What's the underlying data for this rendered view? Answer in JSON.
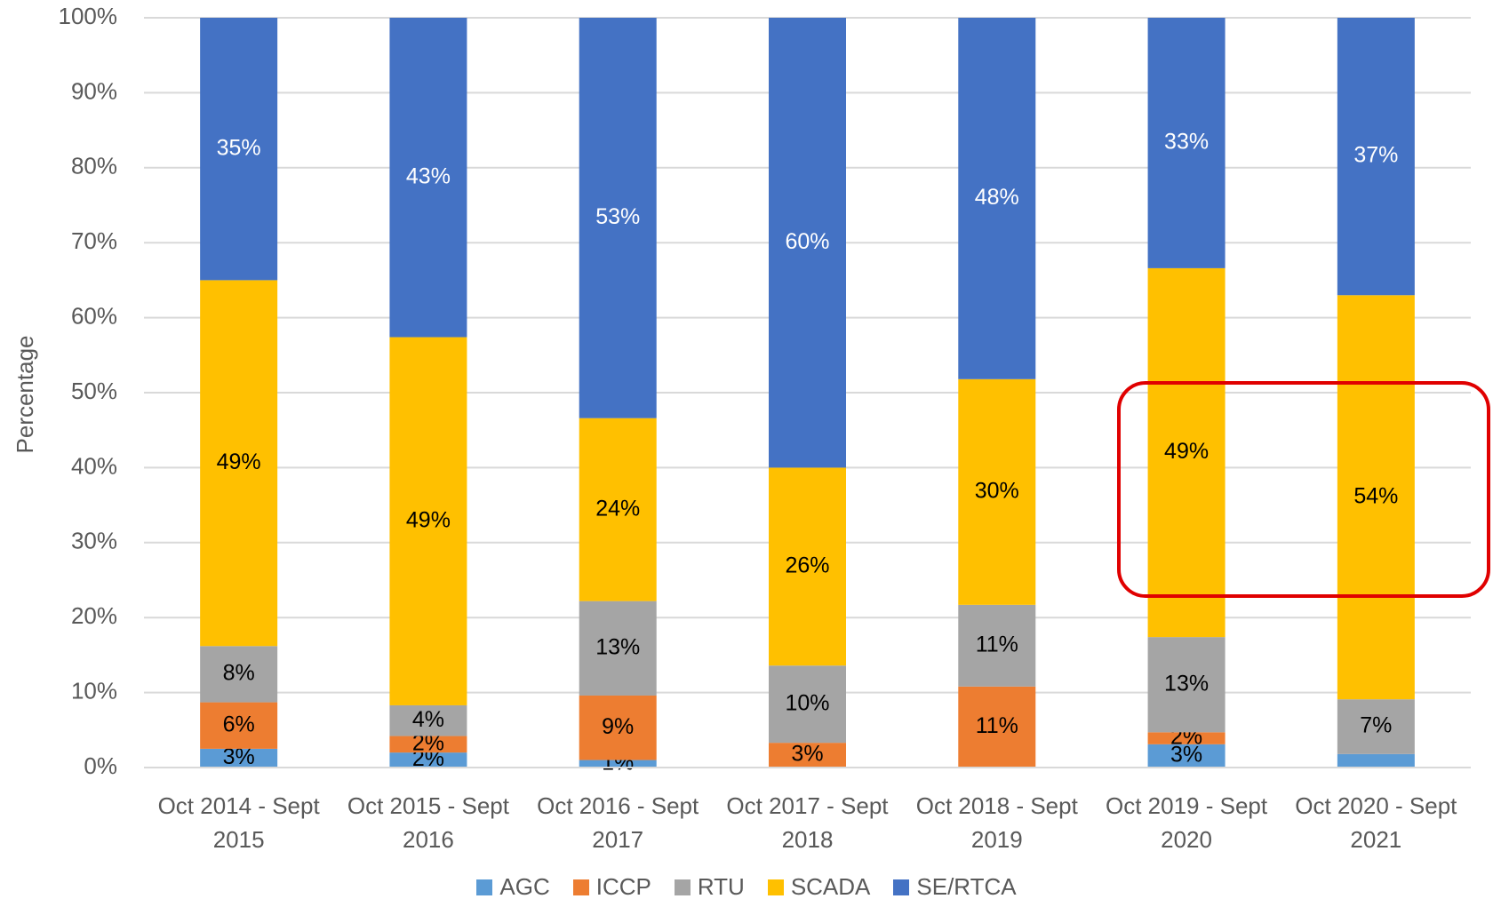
{
  "chart_data": {
    "type": "stacked_bar",
    "ylabel": "Percentage",
    "categories": [
      "Oct 2014 - Sept 2015",
      "Oct 2015 - Sept 2016",
      "Oct 2016 - Sept 2017",
      "Oct 2017 - Sept 2018",
      "Oct 2018 - Sept 2019",
      "Oct 2019 - Sept 2020",
      "Oct 2020 - Sept 2021"
    ],
    "series": [
      {
        "name": "AGC",
        "color": "#5b9bd5",
        "values": [
          2.5,
          2.0,
          1.0,
          0,
          0,
          3.1,
          1.8
        ],
        "value_labels": [
          "3%",
          "2%",
          "1%",
          null,
          null,
          "3%",
          null
        ]
      },
      {
        "name": "ICCP",
        "color": "#ed7d31",
        "values": [
          6.2,
          2.2,
          8.6,
          3.3,
          10.8,
          1.6,
          0
        ],
        "value_labels": [
          "6%",
          "2%",
          "9%",
          "3%",
          "11%",
          "2%",
          null
        ]
      },
      {
        "name": "RTU",
        "color": "#a5a5a5",
        "values": [
          7.5,
          4.1,
          12.6,
          10.3,
          10.9,
          12.7,
          7.3
        ],
        "value_labels": [
          "8%",
          "4%",
          "13%",
          "10%",
          "11%",
          "13%",
          "7%"
        ]
      },
      {
        "name": "SCADA",
        "color": "#ffc000",
        "values": [
          48.8,
          49.1,
          24.4,
          26.4,
          30.1,
          49.2,
          53.9
        ],
        "value_labels": [
          "49%",
          "49%",
          "24%",
          "26%",
          "30%",
          "49%",
          "54%"
        ]
      },
      {
        "name": "SE/RTCA",
        "color": "#4472c4",
        "values": [
          35.0,
          42.6,
          53.4,
          60.0,
          48.2,
          33.4,
          37.0
        ],
        "value_labels": [
          "35%",
          "43%",
          "53%",
          "60%",
          "48%",
          "33%",
          "37%"
        ]
      }
    ],
    "ylim": [
      0,
      100
    ],
    "yticks": [
      {
        "value": 0,
        "label": "0%"
      },
      {
        "value": 10,
        "label": "10%"
      },
      {
        "value": 20,
        "label": "20%"
      },
      {
        "value": 30,
        "label": "30%"
      },
      {
        "value": 40,
        "label": "40%"
      },
      {
        "value": 50,
        "label": "50%"
      },
      {
        "value": 60,
        "label": "60%"
      },
      {
        "value": 70,
        "label": "70%"
      },
      {
        "value": 80,
        "label": "80%"
      },
      {
        "value": 90,
        "label": "90%"
      },
      {
        "value": 100,
        "label": "100%"
      }
    ],
    "grid": true,
    "legend": "bottom"
  }
}
